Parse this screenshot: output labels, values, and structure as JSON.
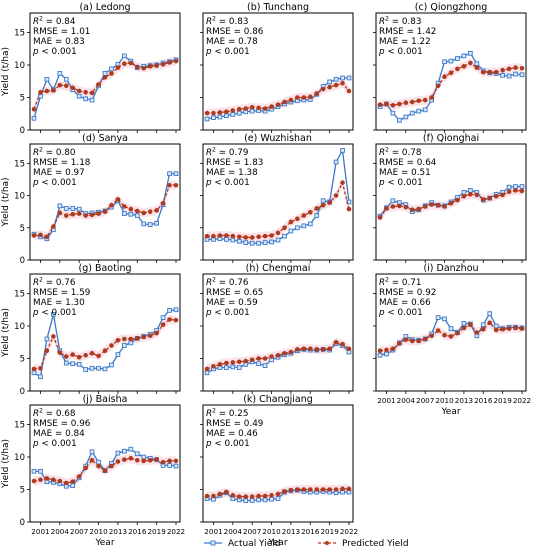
{
  "figure": {
    "xlabel": "Year",
    "ylabel": "Yield (t/ha)",
    "legend": {
      "actual": "Actual Yield",
      "predicted": "Predicted Yield"
    },
    "colors": {
      "actual": "#3a78c9",
      "predicted": "#b03a1e",
      "band": "#f6cbd5"
    }
  },
  "chart_data": [
    {
      "type": "line",
      "title": "(a) Ledong",
      "stats": {
        "r2": "0.84",
        "rmse": "RMSE = 1.01",
        "mae": "MAE = 0.83",
        "p": "< 0.001"
      },
      "x": [
        2000,
        2001,
        2002,
        2003,
        2004,
        2005,
        2006,
        2007,
        2008,
        2009,
        2010,
        2011,
        2012,
        2013,
        2014,
        2015,
        2016,
        2017,
        2018,
        2019,
        2020,
        2021,
        2022
      ],
      "series": [
        {
          "name": "Actual Yield",
          "values": [
            1.8,
            5.2,
            7.8,
            6.2,
            8.7,
            7.8,
            6.2,
            5.2,
            4.8,
            4.6,
            6.8,
            8.7,
            9.4,
            10.1,
            11.4,
            10.6,
            9.6,
            9.8,
            9.9,
            10.0,
            10.3,
            10.5,
            10.8
          ]
        },
        {
          "name": "Predicted Yield",
          "values": [
            3.2,
            5.8,
            6.0,
            6.1,
            6.9,
            6.8,
            6.5,
            6.0,
            5.8,
            5.7,
            7.0,
            8.1,
            8.7,
            9.6,
            10.2,
            10.3,
            9.7,
            9.5,
            9.8,
            9.9,
            10.1,
            10.4,
            10.6
          ]
        }
      ],
      "ylim": [
        0,
        18
      ],
      "yticks": [
        0,
        5,
        10,
        15
      ]
    },
    {
      "type": "line",
      "title": "(b) Tunchang",
      "stats": {
        "r2": "0.83",
        "rmse": "RMSE = 0.86",
        "mae": "MAE = 0.78",
        "p": "< 0.001"
      },
      "x": [
        2000,
        2001,
        2002,
        2003,
        2004,
        2005,
        2006,
        2007,
        2008,
        2009,
        2010,
        2011,
        2012,
        2013,
        2014,
        2015,
        2016,
        2017,
        2018,
        2019,
        2020,
        2021,
        2022
      ],
      "series": [
        {
          "name": "Actual Yield",
          "values": [
            1.7,
            1.9,
            2.0,
            2.2,
            2.4,
            2.6,
            2.8,
            2.9,
            3.0,
            2.9,
            3.2,
            3.6,
            4.0,
            4.3,
            4.5,
            4.6,
            4.7,
            5.5,
            6.7,
            7.4,
            7.8,
            8.0,
            8.0
          ]
        },
        {
          "name": "Predicted Yield",
          "values": [
            2.6,
            2.6,
            2.7,
            2.8,
            3.0,
            3.2,
            3.3,
            3.5,
            3.4,
            3.3,
            3.6,
            3.9,
            4.3,
            4.6,
            5.0,
            5.0,
            5.1,
            5.6,
            6.3,
            6.6,
            6.9,
            7.2,
            6.0
          ]
        }
      ],
      "ylim": [
        0,
        18
      ],
      "yticks": [
        0,
        5,
        10,
        15
      ]
    },
    {
      "type": "line",
      "title": "(c) Qiongzhong",
      "stats": {
        "r2": "0.83",
        "rmse": "RMSE = 1.42",
        "mae": "MAE = 1.22",
        "p": "< 0.001"
      },
      "x": [
        2000,
        2001,
        2002,
        2003,
        2004,
        2005,
        2006,
        2007,
        2008,
        2009,
        2010,
        2011,
        2012,
        2013,
        2014,
        2015,
        2016,
        2017,
        2018,
        2019,
        2020,
        2021,
        2022
      ],
      "series": [
        {
          "name": "Actual Yield",
          "values": [
            3.6,
            4.0,
            2.6,
            1.5,
            2.0,
            2.6,
            2.9,
            3.1,
            4.6,
            7.2,
            10.5,
            10.6,
            11.0,
            11.4,
            11.8,
            10.2,
            9.1,
            8.8,
            8.7,
            8.4,
            8.3,
            8.6,
            8.5
          ]
        },
        {
          "name": "Predicted Yield",
          "values": [
            3.9,
            4.0,
            3.8,
            4.0,
            4.2,
            4.3,
            4.5,
            4.6,
            5.0,
            6.8,
            8.2,
            8.8,
            9.4,
            9.8,
            10.3,
            9.6,
            8.9,
            8.9,
            8.9,
            9.2,
            9.4,
            9.6,
            9.5
          ]
        }
      ],
      "ylim": [
        0,
        18
      ],
      "yticks": [
        0,
        5,
        10,
        15
      ]
    },
    {
      "type": "line",
      "title": "(d) Sanya",
      "stats": {
        "r2": "0.80",
        "rmse": "RMSE = 1.18",
        "mae": "MAE = 0.97",
        "p": "< 0.001"
      },
      "x": [
        2000,
        2001,
        2002,
        2003,
        2004,
        2005,
        2006,
        2007,
        2008,
        2009,
        2010,
        2011,
        2012,
        2013,
        2014,
        2015,
        2016,
        2017,
        2018,
        2019,
        2020,
        2021,
        2022
      ],
      "series": [
        {
          "name": "Actual Yield",
          "values": [
            4.0,
            3.6,
            3.3,
            4.7,
            8.4,
            8.0,
            8.0,
            7.9,
            7.2,
            7.3,
            7.4,
            7.6,
            8.2,
            9.2,
            7.2,
            7.1,
            6.9,
            5.6,
            5.5,
            5.7,
            8.6,
            13.4,
            13.4
          ]
        },
        {
          "name": "Predicted Yield",
          "values": [
            3.8,
            3.9,
            3.6,
            5.2,
            7.3,
            6.9,
            7.1,
            7.2,
            6.9,
            7.0,
            7.2,
            7.5,
            8.5,
            9.4,
            8.3,
            7.9,
            7.6,
            7.3,
            7.5,
            7.7,
            8.8,
            11.6,
            11.6
          ]
        }
      ],
      "ylim": [
        0,
        18
      ],
      "yticks": [
        0,
        5,
        10,
        15
      ]
    },
    {
      "type": "line",
      "title": "(e) Wuzhishan",
      "stats": {
        "r2": "0.79",
        "rmse": "RMSE = 1.83",
        "mae": "MAE = 1.38",
        "p": "< 0.001"
      },
      "x": [
        2000,
        2001,
        2002,
        2003,
        2004,
        2005,
        2006,
        2007,
        2008,
        2009,
        2010,
        2011,
        2012,
        2013,
        2014,
        2015,
        2016,
        2017,
        2018,
        2019,
        2020,
        2021,
        2022
      ],
      "series": [
        {
          "name": "Actual Yield",
          "values": [
            3.2,
            3.2,
            3.3,
            3.2,
            3.1,
            2.9,
            2.7,
            2.6,
            2.6,
            2.7,
            2.8,
            3.1,
            3.7,
            4.5,
            5.0,
            5.3,
            5.6,
            6.9,
            9.2,
            9.0,
            15.2,
            17.0,
            9.0
          ]
        },
        {
          "name": "Predicted Yield",
          "values": [
            3.7,
            3.7,
            3.8,
            3.8,
            3.7,
            3.6,
            3.5,
            3.5,
            3.6,
            3.7,
            3.8,
            4.2,
            5.0,
            5.9,
            6.4,
            6.9,
            7.4,
            8.0,
            8.5,
            8.9,
            10.0,
            12.0,
            7.9
          ]
        }
      ],
      "ylim": [
        0,
        18
      ],
      "yticks": [
        0,
        5,
        10,
        15
      ]
    },
    {
      "type": "line",
      "title": "(f) Qionghai",
      "stats": {
        "r2": "0.78",
        "rmse": "RMSE = 0.64",
        "mae": "MAE = 0.51",
        "p": "< 0.001"
      },
      "x": [
        2000,
        2001,
        2002,
        2003,
        2004,
        2005,
        2006,
        2007,
        2008,
        2009,
        2010,
        2011,
        2012,
        2013,
        2014,
        2015,
        2016,
        2017,
        2018,
        2019,
        2020,
        2021,
        2022
      ],
      "series": [
        {
          "name": "Actual Yield",
          "values": [
            6.8,
            8.1,
            9.2,
            8.9,
            8.6,
            7.5,
            7.8,
            8.4,
            8.9,
            8.5,
            8.4,
            9.0,
            9.7,
            10.5,
            10.8,
            10.5,
            9.3,
            9.6,
            10.2,
            10.5,
            11.3,
            11.4,
            11.4
          ]
        },
        {
          "name": "Predicted Yield",
          "values": [
            6.6,
            8.0,
            8.3,
            8.4,
            8.2,
            7.8,
            7.9,
            8.3,
            8.6,
            8.5,
            8.3,
            8.8,
            9.3,
            9.9,
            10.2,
            10.1,
            9.4,
            9.6,
            9.9,
            10.1,
            10.6,
            10.8,
            10.7
          ]
        }
      ],
      "ylim": [
        0,
        18
      ],
      "yticks": [
        0,
        5,
        10,
        15
      ]
    },
    {
      "type": "line",
      "title": "(g) Baoting",
      "stats": {
        "r2": "0.76",
        "rmse": "RMSE = 1.59",
        "mae": "MAE = 1.30",
        "p": "< 0.001"
      },
      "x": [
        2000,
        2001,
        2002,
        2003,
        2004,
        2005,
        2006,
        2007,
        2008,
        2009,
        2010,
        2011,
        2012,
        2013,
        2014,
        2015,
        2016,
        2017,
        2018,
        2019,
        2020,
        2021,
        2022
      ],
      "series": [
        {
          "name": "Actual Yield",
          "values": [
            2.8,
            2.2,
            8.0,
            11.8,
            6.2,
            4.3,
            4.2,
            4.1,
            3.3,
            3.5,
            3.5,
            3.4,
            4.0,
            5.6,
            7.0,
            7.4,
            8.1,
            8.4,
            8.7,
            9.3,
            11.3,
            12.4,
            12.5
          ]
        },
        {
          "name": "Predicted Yield",
          "values": [
            3.4,
            3.5,
            6.2,
            8.4,
            5.9,
            5.3,
            5.6,
            5.2,
            5.5,
            5.8,
            5.4,
            6.2,
            7.0,
            7.8,
            8.0,
            8.0,
            8.1,
            8.3,
            8.5,
            8.9,
            10.2,
            11.0,
            10.9
          ]
        }
      ],
      "ylim": [
        0,
        18
      ],
      "yticks": [
        0,
        5,
        10,
        15
      ]
    },
    {
      "type": "line",
      "title": "(h) Chengmai",
      "stats": {
        "r2": "0.76",
        "rmse": "RMSE = 0.65",
        "mae": "MAE = 0.59",
        "p": "< 0.001"
      },
      "x": [
        2000,
        2001,
        2002,
        2003,
        2004,
        2005,
        2006,
        2007,
        2008,
        2009,
        2010,
        2011,
        2012,
        2013,
        2014,
        2015,
        2016,
        2017,
        2018,
        2019,
        2020,
        2021,
        2022
      ],
      "series": [
        {
          "name": "Actual Yield",
          "values": [
            2.8,
            3.4,
            3.6,
            3.6,
            3.7,
            3.6,
            4.1,
            4.5,
            4.2,
            3.9,
            4.8,
            5.2,
            5.6,
            5.8,
            6.2,
            6.4,
            6.3,
            6.3,
            6.4,
            6.3,
            7.3,
            7.0,
            6.0
          ]
        },
        {
          "name": "Predicted Yield",
          "values": [
            3.4,
            3.8,
            4.1,
            4.3,
            4.4,
            4.5,
            4.6,
            4.8,
            5.0,
            5.0,
            5.3,
            5.5,
            5.8,
            6.0,
            6.4,
            6.5,
            6.5,
            6.4,
            6.4,
            6.5,
            7.5,
            7.2,
            6.5
          ]
        }
      ],
      "ylim": [
        0,
        18
      ],
      "yticks": [
        0,
        5,
        10,
        15
      ]
    },
    {
      "type": "line",
      "title": "(i) Danzhou",
      "stats": {
        "r2": "0.71",
        "rmse": "RMSE = 0.92",
        "mae": "MAE = 0.66",
        "p": "< 0.001"
      },
      "x": [
        2000,
        2001,
        2002,
        2003,
        2004,
        2005,
        2006,
        2007,
        2008,
        2009,
        2010,
        2011,
        2012,
        2013,
        2014,
        2015,
        2016,
        2017,
        2018,
        2019,
        2020,
        2021,
        2022
      ],
      "series": [
        {
          "name": "Actual Yield",
          "values": [
            5.5,
            5.7,
            6.3,
            7.4,
            8.4,
            7.9,
            7.8,
            8.0,
            8.8,
            11.3,
            11.1,
            9.6,
            9.0,
            10.4,
            10.3,
            8.5,
            10.2,
            11.9,
            10.0,
            9.6,
            9.8,
            9.8,
            9.7
          ]
        },
        {
          "name": "Predicted Yield",
          "values": [
            6.2,
            6.3,
            6.5,
            7.3,
            7.9,
            7.7,
            7.7,
            8.0,
            8.5,
            9.3,
            8.6,
            8.4,
            8.9,
            9.7,
            10.2,
            9.0,
            9.5,
            10.5,
            9.4,
            9.5,
            9.6,
            9.7,
            9.6
          ]
        }
      ],
      "ylim": [
        0,
        18
      ],
      "yticks": [
        0,
        5,
        10,
        15
      ]
    },
    {
      "type": "line",
      "title": "(j) Baisha",
      "stats": {
        "r2": "0.68",
        "rmse": "RMSE = 0.96",
        "mae": "MAE = 0.84",
        "p": "< 0.001"
      },
      "x": [
        2000,
        2001,
        2002,
        2003,
        2004,
        2005,
        2006,
        2007,
        2008,
        2009,
        2010,
        2011,
        2012,
        2013,
        2014,
        2015,
        2016,
        2017,
        2018,
        2019,
        2020,
        2021,
        2022
      ],
      "series": [
        {
          "name": "Actual Yield",
          "values": [
            7.8,
            7.8,
            6.2,
            6.1,
            5.9,
            5.5,
            5.6,
            6.8,
            8.6,
            10.8,
            9.2,
            7.9,
            9.0,
            10.6,
            10.9,
            11.2,
            10.5,
            10.0,
            9.8,
            9.6,
            8.7,
            8.7,
            8.6
          ]
        },
        {
          "name": "Predicted Yield",
          "values": [
            6.3,
            6.5,
            6.7,
            6.5,
            6.3,
            6.0,
            6.2,
            7.0,
            8.3,
            9.5,
            8.6,
            7.9,
            8.6,
            9.3,
            9.6,
            9.8,
            9.5,
            9.4,
            9.5,
            9.6,
            9.2,
            9.4,
            9.4
          ]
        }
      ],
      "ylim": [
        0,
        18
      ],
      "yticks": [
        0,
        5,
        10,
        15
      ]
    },
    {
      "type": "line",
      "title": "(k) Changjiang",
      "stats": {
        "r2": "0.25",
        "rmse": "RMSE = 0.49",
        "mae": "MAE = 0.46",
        "p": "< 0.001"
      },
      "x": [
        2000,
        2001,
        2002,
        2003,
        2004,
        2005,
        2006,
        2007,
        2008,
        2009,
        2010,
        2011,
        2012,
        2013,
        2014,
        2015,
        2016,
        2017,
        2018,
        2019,
        2020,
        2021,
        2022
      ],
      "series": [
        {
          "name": "Actual Yield",
          "values": [
            3.6,
            3.5,
            4.1,
            4.5,
            3.6,
            3.4,
            3.3,
            3.3,
            3.4,
            3.4,
            3.5,
            3.6,
            4.6,
            4.8,
            4.9,
            4.7,
            4.6,
            4.6,
            4.7,
            4.6,
            4.5,
            4.6,
            4.6
          ]
        },
        {
          "name": "Predicted Yield",
          "values": [
            4.0,
            4.0,
            4.3,
            4.6,
            4.1,
            3.9,
            3.9,
            3.9,
            4.0,
            4.0,
            4.1,
            4.3,
            4.7,
            4.9,
            5.0,
            5.0,
            5.0,
            5.0,
            5.0,
            5.0,
            5.0,
            5.1,
            5.1
          ]
        }
      ],
      "ylim": [
        0,
        18
      ],
      "yticks": [
        0,
        5,
        10,
        15
      ]
    }
  ],
  "xticks": [
    2001,
    2004,
    2007,
    2010,
    2013,
    2016,
    2019,
    2022
  ]
}
